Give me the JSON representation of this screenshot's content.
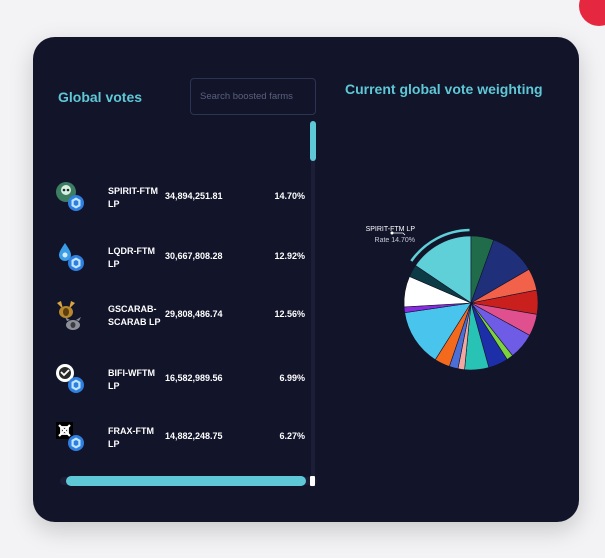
{
  "left_panel": {
    "title": "Global votes",
    "search_placeholder": "Search boosted farms"
  },
  "right_panel": {
    "title": "Current global vote weighting",
    "tooltip_name": "SPIRIT-FTM LP",
    "tooltip_rate": "Rate 14.70%"
  },
  "farms": [
    {
      "name": "SPIRIT-FTM LP",
      "votes": "34,894,251.81",
      "percent": "14.70%",
      "icon": "spirit-token-icon"
    },
    {
      "name": "LQDR-FTM LP",
      "votes": "30,667,808.28",
      "percent": "12.92%",
      "icon": "lqdr-token-icon"
    },
    {
      "name": "GSCARAB-SCARAB LP",
      "votes": "29,808,486.74",
      "percent": "12.56%",
      "icon": "gscarab-token-icon"
    },
    {
      "name": "BIFI-WFTM LP",
      "votes": "16,582,989.56",
      "percent": "6.99%",
      "icon": "bifi-token-icon"
    },
    {
      "name": "FRAX-FTM LP",
      "votes": "14,882,248.75",
      "percent": "6.27%",
      "icon": "frax-token-icon"
    }
  ],
  "chart_data": {
    "type": "pie",
    "highlight": "SPIRIT-FTM LP",
    "slices": [
      {
        "value": 14.7,
        "color": "#5fcfd8"
      },
      {
        "value": 5.2,
        "color": "#1f6b4a"
      },
      {
        "value": 10.5,
        "color": "#1f2f7a"
      },
      {
        "value": 5.0,
        "color": "#f2624b"
      },
      {
        "value": 5.5,
        "color": "#c9201e"
      },
      {
        "value": 5.0,
        "color": "#e0508e"
      },
      {
        "value": 6.0,
        "color": "#6e5ce6"
      },
      {
        "value": 1.5,
        "color": "#7dd33d"
      },
      {
        "value": 4.5,
        "color": "#1d2fa8"
      },
      {
        "value": 5.5,
        "color": "#28c3b5"
      },
      {
        "value": 1.5,
        "color": "#f2a7a0"
      },
      {
        "value": 2.0,
        "color": "#4a6fd6"
      },
      {
        "value": 3.5,
        "color": "#f46a1c"
      },
      {
        "value": 13.0,
        "color": "#49c4ec"
      },
      {
        "value": 1.3,
        "color": "#8a2be2"
      },
      {
        "value": 7.0,
        "color": "#ffffff"
      },
      {
        "value": 2.8,
        "color": "#0c3b45"
      }
    ]
  }
}
